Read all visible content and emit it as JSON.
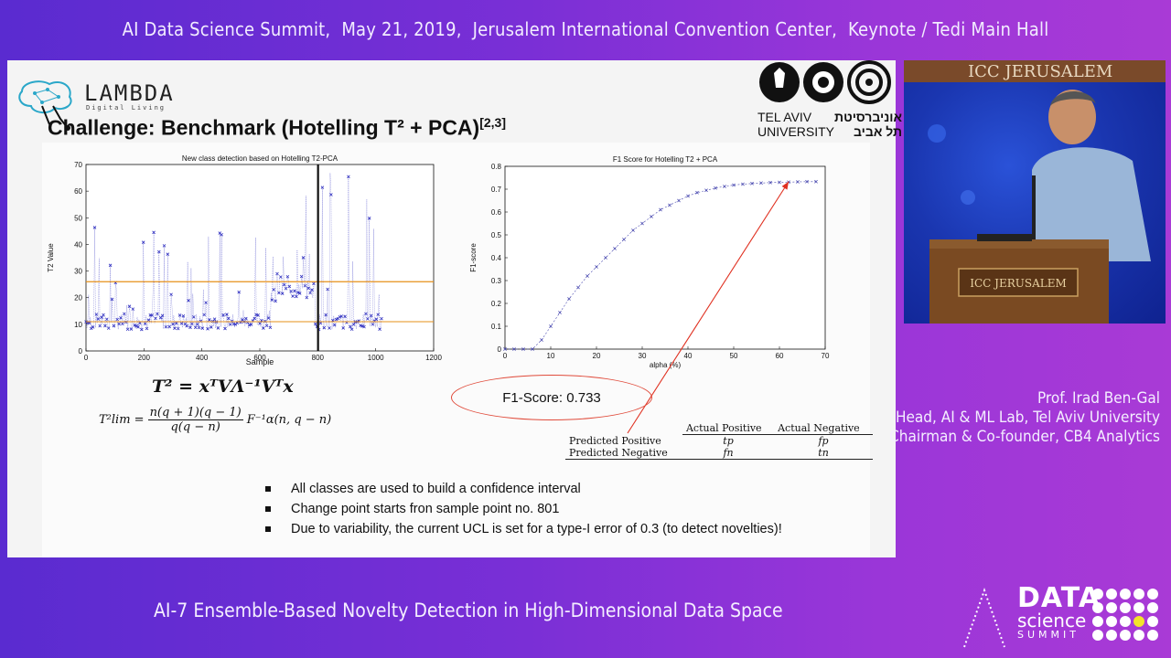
{
  "header": {
    "summit": "AI Data Science Summit,",
    "date": "May 21, 2019,",
    "venue": "Jerusalem International Convention Center,",
    "hall": "Keynote / Tedi Main Hall"
  },
  "slide": {
    "lambda_logo": "LAMBDA",
    "lambda_sub": "Digital Living",
    "title": "Challenge: Benchmark (Hotelling T² + PCA)",
    "title_ref": "[2,3]",
    "university_en_1": "TEL AVIV",
    "university_en_2": "UNIVERSITY",
    "university_he_1": "אוניברסיטת",
    "university_he_2": "תל אביב",
    "formula_t2": "T² = xᵀVΛ⁻¹Vᵀx",
    "formula_tlim_lhs": "T²lim =",
    "formula_tlim_num": "n(q + 1)(q − 1)",
    "formula_tlim_den": "q(q − n)",
    "formula_tlim_rhs": "F⁻¹α(n, q − n)",
    "f1_callout": "F1-Score: 0.733",
    "table": {
      "headers": [
        "",
        "Actual Positive",
        "Actual Negative"
      ],
      "rows": [
        [
          "Predicted Positive",
          "tp",
          "fp"
        ],
        [
          "Predicted Negative",
          "fn",
          "tn"
        ]
      ]
    },
    "bullets": [
      "All classes are used to build a confidence interval",
      "Change point starts fron sample point no. 801",
      "Due to variability, the current  UCL is set for a type-I error of 0.3 (to detect novelties)!"
    ]
  },
  "speaker": {
    "name": "Prof. Irad Ben-Gal",
    "role1": "Head, AI & ML Lab, Tel Aviv University",
    "role2": "Chairman & Co-founder, CB4 Analytics"
  },
  "footer": {
    "session": "AI-7 Ensemble-Based Novelty Detection in High-Dimensional Data Space",
    "logo_l1": "DATA",
    "logo_l2": "science",
    "logo_l3": "SUMMIT"
  },
  "video": {
    "podium_sign": "ICC JERUSALEM",
    "backdrop": "ICC JERUSALEM"
  },
  "chart_data": [
    {
      "type": "scatter",
      "title": "New class detection based on Hotelling T2-PCA",
      "xlabel": "Sample",
      "ylabel": "T2 Value",
      "xlim": [
        0,
        1200
      ],
      "ylim": [
        0,
        70
      ],
      "xticks": [
        "0",
        "200",
        "400",
        "600",
        "800",
        "1000",
        "1200"
      ],
      "yticks": [
        "0",
        "10",
        "20",
        "30",
        "40",
        "50",
        "60",
        "70"
      ],
      "ucl": 26,
      "lower_line": 11,
      "change_point": 801,
      "x_range": [
        0,
        1020
      ],
      "colors": {
        "points": "#3030c0",
        "ucl": "#e6901a",
        "lower": "#e6901a",
        "change": "#111111"
      }
    },
    {
      "type": "line",
      "title": "F1 Score for Hotelling T2 + PCA",
      "xlabel": "alpha (%)",
      "ylabel": "F1-score",
      "xlim": [
        0,
        70
      ],
      "ylim": [
        0,
        0.8
      ],
      "xticks": [
        "0",
        "10",
        "20",
        "30",
        "40",
        "50",
        "60",
        "70"
      ],
      "yticks": [
        "0",
        "0.1",
        "0.2",
        "0.3",
        "0.4",
        "0.5",
        "0.6",
        "0.7",
        "0.8"
      ],
      "x": [
        0,
        2,
        4,
        6,
        8,
        10,
        12,
        14,
        16,
        18,
        20,
        22,
        24,
        26,
        28,
        30,
        32,
        34,
        36,
        38,
        40,
        42,
        44,
        46,
        48,
        50,
        52,
        54,
        56,
        58,
        60,
        62,
        64,
        66,
        68
      ],
      "y": [
        0,
        0,
        0,
        0,
        0.04,
        0.1,
        0.16,
        0.22,
        0.27,
        0.32,
        0.36,
        0.4,
        0.44,
        0.48,
        0.52,
        0.55,
        0.58,
        0.61,
        0.63,
        0.65,
        0.67,
        0.685,
        0.695,
        0.705,
        0.712,
        0.718,
        0.722,
        0.725,
        0.727,
        0.729,
        0.73,
        0.731,
        0.732,
        0.733,
        0.733
      ],
      "colors": {
        "line": "#4a4ab0",
        "arrow": "#e03020"
      }
    }
  ]
}
